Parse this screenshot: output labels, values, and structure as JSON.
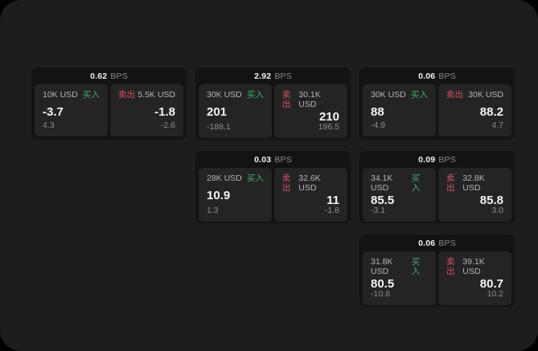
{
  "labels": {
    "bps_unit": "BPS",
    "buy": "买入",
    "sell": "卖出"
  },
  "colors": {
    "panel_bg": "#1d1d1d",
    "card_bg": "#131313",
    "cell_bg": "#242424",
    "buy_green": "#3fae68",
    "sell_red": "#d94f63"
  },
  "cards": [
    {
      "bps": "0.62",
      "buy": {
        "amount": "10K USD",
        "price": "-3.7",
        "delta": "4.3"
      },
      "sell": {
        "amount": "5.5K USD",
        "price": "-1.8",
        "delta": "-2.6"
      }
    },
    {
      "bps": "2.92",
      "buy": {
        "amount": "30K USD",
        "price": "201",
        "delta": "-188.1"
      },
      "sell": {
        "amount": "30.1K USD",
        "price": "210",
        "delta": "196.5"
      }
    },
    {
      "bps": "0.06",
      "buy": {
        "amount": "30K USD",
        "price": "88",
        "delta": "-4.9"
      },
      "sell": {
        "amount": "30K USD",
        "price": "88.2",
        "delta": "4.7"
      }
    },
    {
      "bps": "0.03",
      "buy": {
        "amount": "28K USD",
        "price": "10.9",
        "delta": "1.3"
      },
      "sell": {
        "amount": "32.6K USD",
        "price": "11",
        "delta": "-1.8"
      }
    },
    {
      "bps": "0.09",
      "buy": {
        "amount": "34.1K USD",
        "price": "85.5",
        "delta": "-3.1"
      },
      "sell": {
        "amount": "32.8K USD",
        "price": "85.8",
        "delta": "3.0"
      }
    },
    {
      "bps": "0.06",
      "buy": {
        "amount": "31.8K USD",
        "price": "80.5",
        "delta": "-10.8"
      },
      "sell": {
        "amount": "39.1K USD",
        "price": "80.7",
        "delta": "10.2"
      }
    }
  ]
}
